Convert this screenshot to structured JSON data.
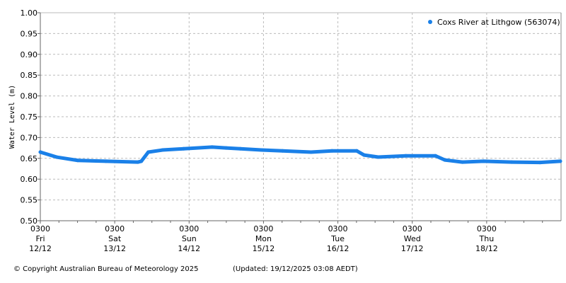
{
  "chart_data": {
    "type": "line",
    "title": "",
    "xlabel": "",
    "ylabel": "Water Level (m)",
    "ylim": [
      0.5,
      1.0
    ],
    "yticks": [
      "0.50",
      "0.55",
      "0.60",
      "0.65",
      "0.70",
      "0.75",
      "0.80",
      "0.85",
      "0.90",
      "0.95",
      "1.00"
    ],
    "xlim": [
      "2025-12-12 03:00",
      "2025-12-19 03:00"
    ],
    "xticks": [
      {
        "time": "0300",
        "day": "Fri",
        "date": "12/12"
      },
      {
        "time": "0300",
        "day": "Sat",
        "date": "13/12"
      },
      {
        "time": "0300",
        "day": "Sun",
        "date": "14/12"
      },
      {
        "time": "0300",
        "day": "Mon",
        "date": "15/12"
      },
      {
        "time": "0300",
        "day": "Tue",
        "date": "16/12"
      },
      {
        "time": "0300",
        "day": "Wed",
        "date": "17/12"
      },
      {
        "time": "0300",
        "day": "Thu",
        "date": "18/12"
      }
    ],
    "grid": true,
    "legend_position": "top-right",
    "series": [
      {
        "name": "Coxs River at Lithgow (563074)",
        "color": "#1a80e8",
        "x": [
          "2025-12-12 03:00",
          "2025-12-12 08:15",
          "2025-12-12 15:05",
          "2025-12-13 00:10",
          "2025-12-13 10:30",
          "2025-12-13 11:35",
          "2025-12-13 13:50",
          "2025-12-13 18:25",
          "2025-12-14 01:15",
          "2025-12-14 10:25",
          "2025-12-14 14:55",
          "2025-12-14 19:30",
          "2025-12-15 02:20",
          "2025-12-15 09:10",
          "2025-12-15 18:20",
          "2025-12-16 01:05",
          "2025-12-16 09:05",
          "2025-12-16 11:25",
          "2025-12-16 16:00",
          "2025-12-17 00:55",
          "2025-12-17 10:30",
          "2025-12-17 13:30",
          "2025-12-17 19:10",
          "2025-12-18 02:00",
          "2025-12-18 11:05",
          "2025-12-18 20:15",
          "2025-12-19 02:45"
        ],
        "y": [
          0.665,
          0.653,
          0.645,
          0.643,
          0.641,
          0.643,
          0.665,
          0.67,
          0.673,
          0.677,
          0.675,
          0.673,
          0.67,
          0.668,
          0.665,
          0.668,
          0.668,
          0.658,
          0.653,
          0.656,
          0.656,
          0.646,
          0.641,
          0.643,
          0.641,
          0.64,
          0.643
        ]
      }
    ]
  },
  "footer": {
    "copyright": "© Copyright Australian Bureau of Meteorology 2025",
    "updated": "(Updated: 19/12/2025 03:08 AEDT)"
  }
}
